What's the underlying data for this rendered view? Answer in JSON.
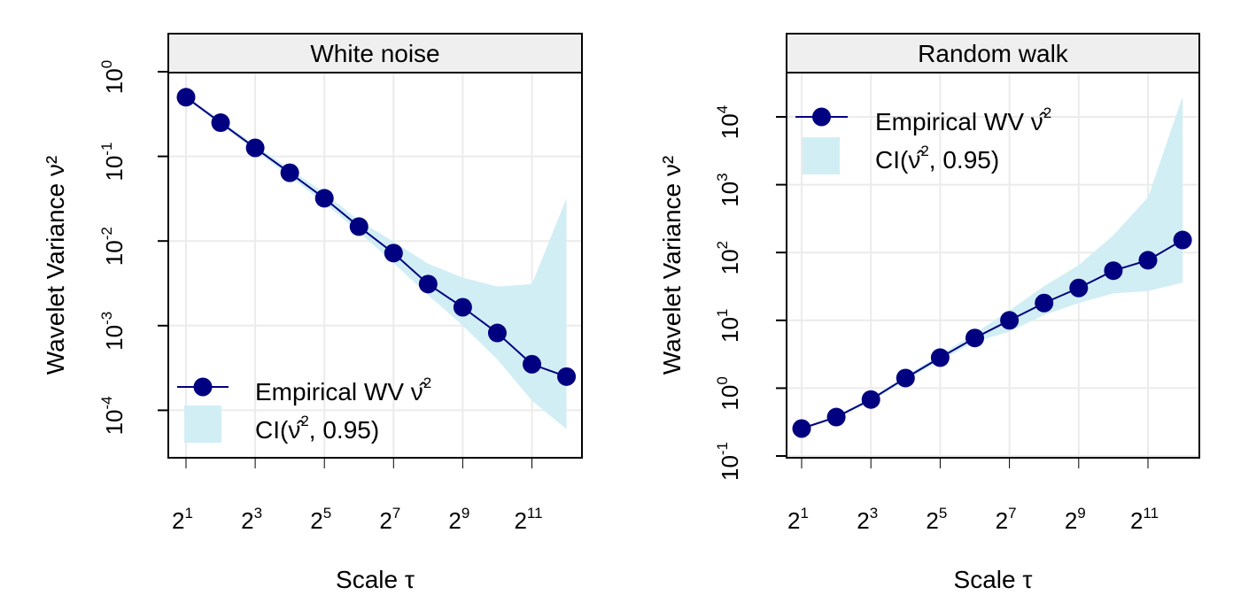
{
  "chart_data": [
    {
      "type": "line",
      "title": "White noise",
      "xlabel": "Scale τ",
      "ylabel": "Wavelet Variance ν²",
      "x_scale": "log2",
      "y_scale": "log10",
      "x": [
        2,
        4,
        8,
        16,
        32,
        64,
        128,
        256,
        512,
        1024,
        2048,
        4096
      ],
      "x_ticks": [
        1,
        3,
        5,
        7,
        9,
        11
      ],
      "y_ticks": [
        0,
        -1,
        -2,
        -3,
        -4
      ],
      "grid": true,
      "legend_position": "bottom-left",
      "series": [
        {
          "name": "Empirical WV ν̂²",
          "type": "line-points",
          "color": "#000080",
          "values": [
            0.5,
            0.25,
            0.126,
            0.064,
            0.032,
            0.0148,
            0.0072,
            0.0031,
            0.00165,
            0.00082,
            0.00035,
            0.00025
          ]
        },
        {
          "name": "CI(ν̂², 0.95)",
          "type": "band",
          "color": "#d1eef5",
          "lower": [
            0.48,
            0.235,
            0.117,
            0.058,
            0.028,
            0.0128,
            0.0055,
            0.0023,
            0.001,
            0.0004,
            0.00013,
            6e-05
          ],
          "upper": [
            0.52,
            0.265,
            0.136,
            0.071,
            0.037,
            0.0175,
            0.0098,
            0.0054,
            0.0037,
            0.0029,
            0.0031,
            0.032
          ]
        }
      ]
    },
    {
      "type": "line",
      "title": "Random walk",
      "xlabel": "Scale τ",
      "ylabel": "Wavelet Variance ν²",
      "x_scale": "log2",
      "y_scale": "log10",
      "x": [
        2,
        4,
        8,
        16,
        32,
        64,
        128,
        256,
        512,
        1024,
        2048,
        4096
      ],
      "x_ticks": [
        1,
        3,
        5,
        7,
        9,
        11
      ],
      "y_ticks": [
        -1,
        0,
        1,
        2,
        3,
        4
      ],
      "grid": true,
      "legend_position": "top-left",
      "series": [
        {
          "name": "Empirical WV ν̂²",
          "type": "line-points",
          "color": "#000080",
          "values": [
            0.254,
            0.375,
            0.68,
            1.41,
            2.82,
            5.5,
            10,
            18,
            30,
            54,
            77,
            153
          ]
        },
        {
          "name": "CI(ν̂², 0.95)",
          "type": "band",
          "color": "#d1eef5",
          "lower": [
            0.245,
            0.36,
            0.64,
            1.3,
            2.55,
            4.8,
            6.8,
            12,
            18,
            25,
            27,
            36
          ],
          "upper": [
            0.265,
            0.39,
            0.72,
            1.53,
            3.1,
            6.4,
            14,
            32,
            65,
            180,
            650,
            20000
          ]
        }
      ]
    }
  ]
}
